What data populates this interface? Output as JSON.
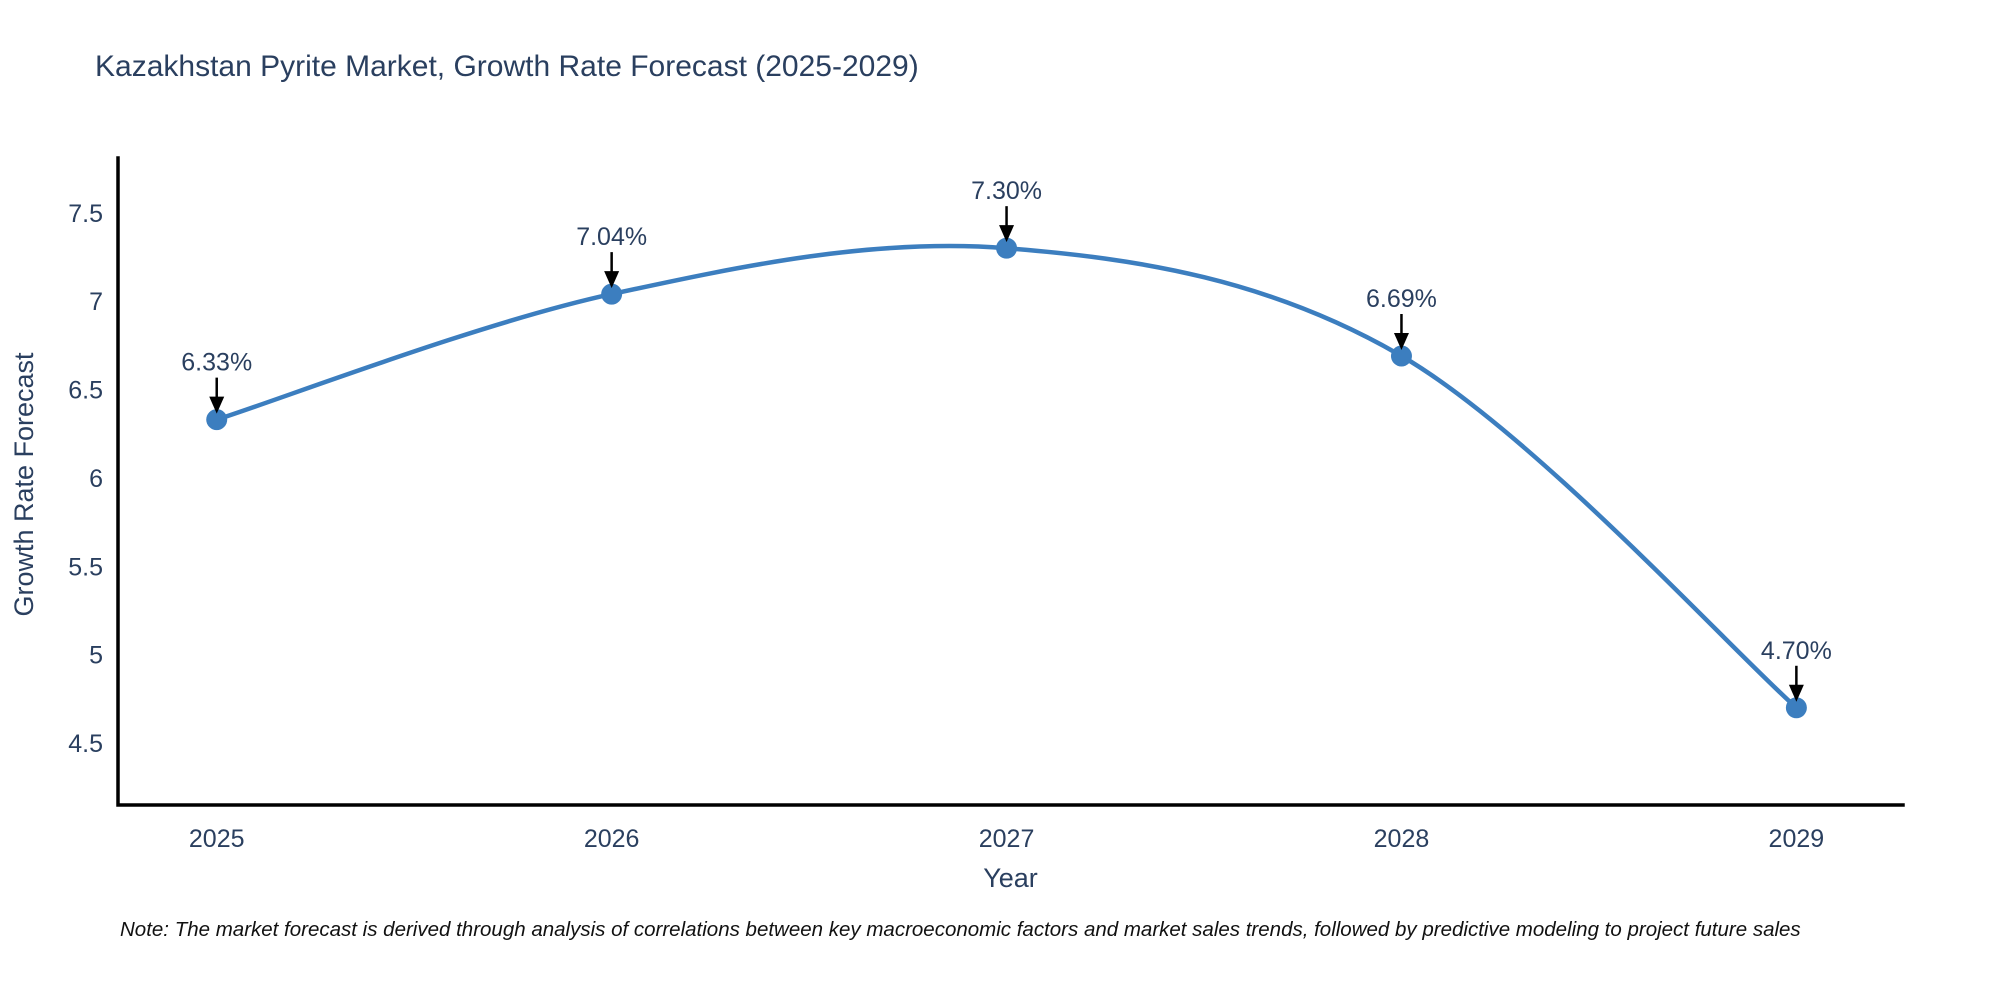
{
  "note": "Note: The market forecast is derived through analysis of correlations between key macroeconomic factors and market sales trends, followed by predictive modeling to project future sales",
  "chart_data": {
    "type": "line",
    "title": "Kazakhstan Pyrite Market, Growth Rate Forecast (2025-2029)",
    "xlabel": "Year",
    "ylabel": "Growth Rate Forecast",
    "x": [
      2025,
      2026,
      2027,
      2028,
      2029
    ],
    "values": [
      6.33,
      7.04,
      7.3,
      6.69,
      4.7
    ],
    "point_labels": [
      "6.33%",
      "7.04%",
      "7.30%",
      "6.69%",
      "4.70%"
    ],
    "xtick_labels": [
      "2025",
      "2026",
      "2027",
      "2028",
      "2029"
    ],
    "yticks": [
      4.5,
      5,
      5.5,
      6,
      6.5,
      7,
      7.5
    ],
    "ytick_labels": [
      "4.5",
      "5",
      "5.5",
      "6",
      "6.5",
      "7",
      "7.5"
    ],
    "xlim": [
      2024.75,
      2029.27
    ],
    "ylim": [
      4.15,
      7.81
    ],
    "grid": false,
    "legend": false,
    "line_shape": "spline",
    "annotations_arrow": "down-black",
    "colors": {
      "line": "#3c7ebf",
      "marker": "#3c7ebf",
      "text": "#2a3f5f",
      "axis": "#000000",
      "arrow": "#000000",
      "note": "#111111",
      "background": "#ffffff"
    }
  }
}
